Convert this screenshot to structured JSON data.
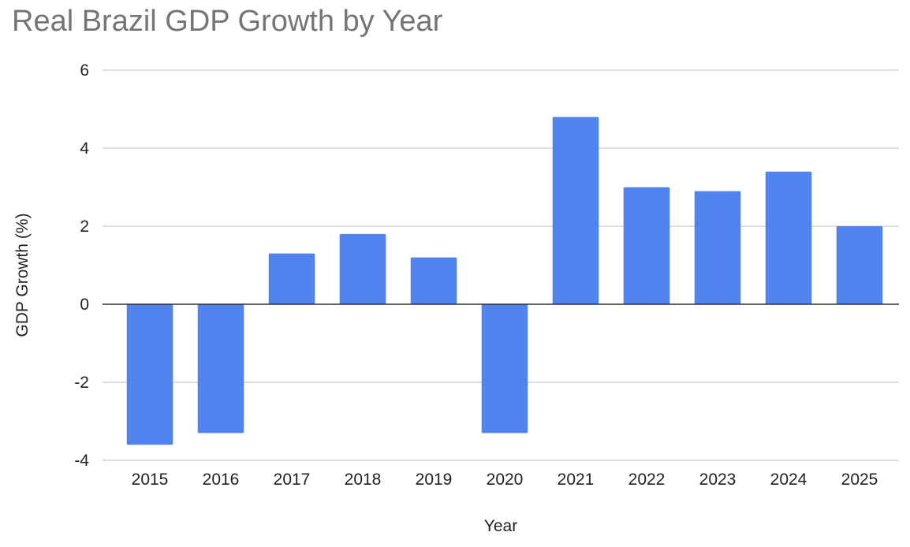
{
  "chart_data": {
    "type": "bar",
    "title": "Real Brazil GDP Growth by Year",
    "xlabel": "Year",
    "ylabel": "GDP Growth (%)",
    "categories": [
      "2015",
      "2016",
      "2017",
      "2018",
      "2019",
      "2020",
      "2021",
      "2022",
      "2023",
      "2024",
      "2025"
    ],
    "values": [
      -3.6,
      -3.3,
      1.3,
      1.8,
      1.2,
      -3.3,
      4.8,
      3.0,
      2.9,
      3.4,
      2.0
    ],
    "ylim": [
      -4,
      6
    ],
    "yticks": [
      6,
      4,
      2,
      0,
      -2,
      -4
    ],
    "ytick_labels": [
      "6",
      "4",
      "2",
      "0",
      "-2",
      "-4"
    ],
    "grid": true,
    "legend": "none",
    "colors": {
      "bar": "#5083ED",
      "grid": "#CCCCCC",
      "zero_line": "#333333",
      "title": "#757575",
      "text": "#222222"
    }
  }
}
